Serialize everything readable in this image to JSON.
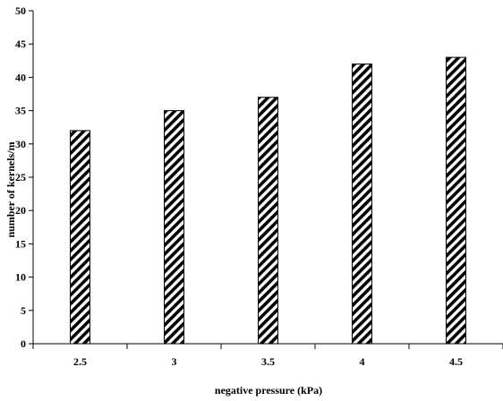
{
  "chart_data": {
    "type": "bar",
    "title": "",
    "xlabel": "negative pressure (kPa)",
    "ylabel": "number of kernels/m",
    "categories": [
      "2.5",
      "3",
      "3.5",
      "4",
      "4.5"
    ],
    "values": [
      32,
      35,
      37,
      42,
      43
    ],
    "ylim": [
      0,
      50
    ],
    "yticks": [
      "0",
      "5",
      "10",
      "15",
      "20",
      "25",
      "30",
      "35",
      "40",
      "45",
      "50"
    ],
    "grid": false,
    "legend": "none",
    "bar_fill": "diagonal-hatch",
    "colors": {
      "hatch": "#000000",
      "background": "#ffffff",
      "axis": "#000000"
    }
  }
}
